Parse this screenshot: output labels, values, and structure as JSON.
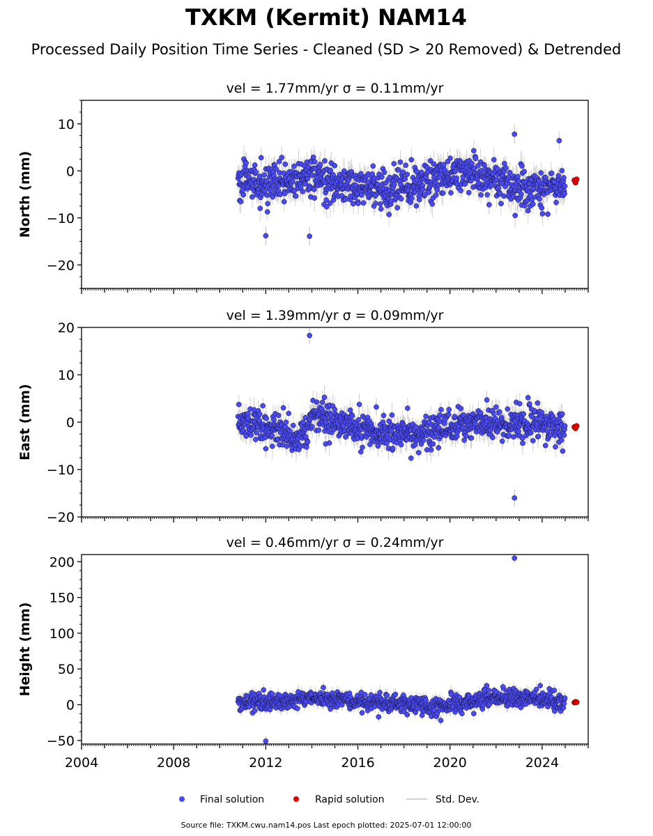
{
  "figure": {
    "title": "TXKM (Kermit) NAM14",
    "subtitle": "Processed Daily Position Time Series - Cleaned (SD > 20 Removed) & Detrended",
    "footer": "Source file: TXKM.cwu.nam14.pos  Last epoch plotted: 2025-07-01 12:00:00",
    "colors": {
      "final": "#4a4af0",
      "rapid": "#e00000",
      "stddev": "#bbbbbb",
      "axis": "#000000"
    }
  },
  "legend": {
    "final": "Final solution",
    "rapid": "Rapid solution",
    "stddev": "Std. Dev."
  },
  "chart_data": [
    {
      "type": "scatter",
      "title": "vel = 1.77mm/yr   σ = 0.11mm/yr",
      "xlabel": "",
      "ylabel": "North (mm)",
      "xlim": [
        2004.0,
        2026.0
      ],
      "ylim": [
        -25,
        15
      ],
      "yticks": [
        -20,
        -10,
        0,
        10
      ],
      "xticks": [
        2004,
        2008,
        2012,
        2016,
        2020,
        2024
      ],
      "grid": false,
      "data_span": [
        2010.8,
        2025.0
      ],
      "scatter_sd": 2.0,
      "sigma_typical": 2.0,
      "trend": [
        [
          2010.8,
          -2.0
        ],
        [
          2012.5,
          -3.0
        ],
        [
          2014.0,
          -1.5
        ],
        [
          2016.0,
          -3.5
        ],
        [
          2017.5,
          -4.0
        ],
        [
          2019.0,
          -2.5
        ],
        [
          2020.5,
          0.0
        ],
        [
          2022.0,
          -2.0
        ],
        [
          2023.5,
          -3.5
        ],
        [
          2025.0,
          -3.0
        ]
      ],
      "outliers": [
        [
          2012.0,
          -13.8
        ],
        [
          2013.9,
          -13.9
        ],
        [
          2022.8,
          7.8
        ],
        [
          2021.7,
          -7.2
        ],
        [
          2011.8,
          2.8
        ],
        [
          2016.7,
          -7.5
        ],
        [
          2019.9,
          2.0
        ]
      ],
      "rapid": [
        [
          2025.4,
          -2.0
        ],
        [
          2025.45,
          -2.5
        ],
        [
          2025.5,
          -1.8
        ]
      ]
    },
    {
      "type": "scatter",
      "title": "vel = 1.39mm/yr   σ = 0.09mm/yr",
      "xlabel": "",
      "ylabel": "East (mm)",
      "xlim": [
        2004.0,
        2026.0
      ],
      "ylim": [
        -20,
        20
      ],
      "yticks": [
        -20,
        -10,
        0,
        10,
        20
      ],
      "xticks": [
        2004,
        2008,
        2012,
        2016,
        2020,
        2024
      ],
      "grid": false,
      "data_span": [
        2010.8,
        2025.0
      ],
      "scatter_sd": 1.6,
      "sigma_typical": 1.8,
      "trend": [
        [
          2010.8,
          0.0
        ],
        [
          2012.0,
          -0.5
        ],
        [
          2012.6,
          -2.0
        ],
        [
          2013.8,
          -3.5
        ],
        [
          2013.9,
          1.5
        ],
        [
          2014.5,
          1.0
        ],
        [
          2016.0,
          -1.5
        ],
        [
          2017.5,
          -2.5
        ],
        [
          2019.0,
          -2.0
        ],
        [
          2020.5,
          -0.5
        ],
        [
          2022.0,
          -0.5
        ],
        [
          2023.5,
          0.0
        ],
        [
          2025.0,
          -1.0
        ]
      ],
      "outliers": [
        [
          2013.9,
          18.3
        ],
        [
          2022.8,
          -16.0
        ],
        [
          2021.6,
          4.7
        ],
        [
          2012.0,
          -5.6
        ],
        [
          2014.6,
          -4.6
        ],
        [
          2016.8,
          3.2
        ],
        [
          2019.5,
          -5.4
        ],
        [
          2022.0,
          3.2
        ]
      ],
      "rapid": [
        [
          2025.4,
          -1.0
        ],
        [
          2025.45,
          -1.3
        ],
        [
          2025.5,
          -0.8
        ]
      ]
    },
    {
      "type": "scatter",
      "title": "vel = 0.46mm/yr   σ = 0.24mm/yr",
      "xlabel": "",
      "ylabel": "Height (mm)",
      "xlim": [
        2004.0,
        2026.0
      ],
      "ylim": [
        -55,
        210
      ],
      "yticks": [
        -50,
        0,
        50,
        100,
        150,
        200
      ],
      "xticks": [
        2004,
        2008,
        2012,
        2016,
        2020,
        2024
      ],
      "grid": false,
      "data_span": [
        2010.8,
        2025.0
      ],
      "scatter_sd": 6.0,
      "sigma_typical": 7.0,
      "trend": [
        [
          2010.8,
          3.0
        ],
        [
          2012.5,
          4.0
        ],
        [
          2014.0,
          10.0
        ],
        [
          2016.0,
          5.0
        ],
        [
          2018.0,
          2.0
        ],
        [
          2019.5,
          -3.0
        ],
        [
          2021.0,
          5.0
        ],
        [
          2022.5,
          10.0
        ],
        [
          2024.0,
          8.0
        ],
        [
          2025.0,
          3.0
        ]
      ],
      "outliers": [
        [
          2022.8,
          205.0
        ],
        [
          2012.0,
          -51.0
        ],
        [
          2019.6,
          -22.0
        ],
        [
          2014.5,
          24.0
        ],
        [
          2022.3,
          25.0
        ],
        [
          2016.9,
          -17.0
        ]
      ],
      "rapid": [
        [
          2025.4,
          3.0
        ],
        [
          2025.45,
          4.0
        ],
        [
          2025.5,
          3.5
        ]
      ]
    }
  ]
}
